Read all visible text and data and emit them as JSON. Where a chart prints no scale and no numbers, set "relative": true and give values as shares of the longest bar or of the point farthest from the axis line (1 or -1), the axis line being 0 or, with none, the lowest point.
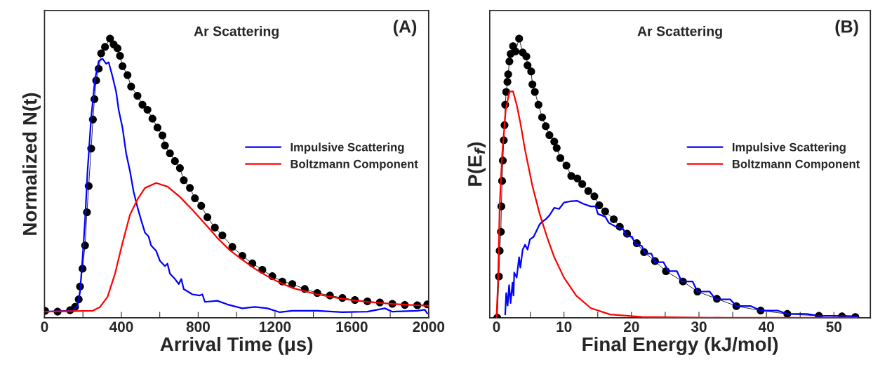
{
  "chart_data": [
    {
      "type": "line",
      "title": "Ar Scattering",
      "xlabel": "Arrival Time (μs)",
      "ylabel": "Normalized N(t)",
      "annotations": [
        "(A)"
      ],
      "relative": true,
      "xlim": [
        0,
        2000
      ],
      "xticks": [
        0,
        {
          "value": 200,
          "label": null
        },
        400,
        {
          "value": 600,
          "label": null
        },
        800,
        {
          "value": 1000,
          "label": null
        },
        1200,
        {
          "value": 1400,
          "label": null
        },
        1600,
        {
          "value": 1800,
          "label": null
        },
        2000
      ],
      "grid": false,
      "legend": "right",
      "series": [
        {
          "marker": "circle",
          "color": "#000000",
          "x": [
            3,
            68,
            133,
            159,
            178,
            185,
            198,
            211,
            221,
            230,
            243,
            252,
            260,
            269,
            282,
            295,
            315,
            341,
            360,
            380,
            393,
            406,
            432,
            451,
            484,
            510,
            536,
            562,
            588,
            614,
            627,
            653,
            679,
            705,
            725,
            757,
            783,
            816,
            848,
            887,
            926,
            978,
            1030,
            1082,
            1134,
            1186,
            1238,
            1290,
            1355,
            1420,
            1486,
            1551,
            1616,
            1681,
            1746,
            1811,
            1876,
            1941,
            1993
          ],
          "values": [
            0.025,
            0.022,
            0.027,
            0.039,
            0.066,
            0.112,
            0.176,
            0.259,
            0.378,
            0.472,
            0.606,
            0.71,
            0.783,
            0.85,
            0.892,
            0.947,
            0.97,
            1.0,
            0.979,
            0.965,
            0.938,
            0.901,
            0.869,
            0.828,
            0.795,
            0.763,
            0.745,
            0.713,
            0.681,
            0.653,
            0.617,
            0.589,
            0.561,
            0.536,
            0.493,
            0.465,
            0.428,
            0.401,
            0.36,
            0.323,
            0.295,
            0.254,
            0.222,
            0.195,
            0.172,
            0.149,
            0.13,
            0.121,
            0.103,
            0.089,
            0.08,
            0.071,
            0.064,
            0.059,
            0.055,
            0.05,
            0.046,
            0.045,
            0.048
          ]
        },
        {
          "name": "Impulsive Scattering",
          "color": "#0000ff",
          "x": [
            3,
            146,
            172,
            185,
            198,
            211,
            224,
            243,
            263,
            282,
            302,
            321,
            334,
            354,
            373,
            386,
            406,
            425,
            445,
            464,
            484,
            503,
            523,
            542,
            555,
            581,
            601,
            627,
            640,
            653,
            679,
            699,
            712,
            725,
            770,
            809,
            822,
            835,
            900,
            952,
            1030,
            1095,
            1160,
            1225,
            1290,
            1420,
            1551,
            1681,
            1772,
            1811,
            1941,
            1980,
            1993
          ],
          "values": [
            0.022,
            0.025,
            0.043,
            0.094,
            0.213,
            0.35,
            0.525,
            0.717,
            0.855,
            0.919,
            0.928,
            0.91,
            0.915,
            0.864,
            0.809,
            0.745,
            0.681,
            0.589,
            0.525,
            0.451,
            0.396,
            0.35,
            0.305,
            0.291,
            0.259,
            0.24,
            0.204,
            0.185,
            0.194,
            0.158,
            0.139,
            0.121,
            0.139,
            0.103,
            0.084,
            0.08,
            0.084,
            0.057,
            0.061,
            0.048,
            0.034,
            0.039,
            0.034,
            0.02,
            0.025,
            0.025,
            0.02,
            0.022,
            0.034,
            0.022,
            0.025,
            0.029,
            0.016
          ]
        },
        {
          "name": "Boltzmann Component",
          "color": "#ff0000",
          "x": [
            3,
            250,
            289,
            328,
            367,
            406,
            445,
            484,
            523,
            581,
            640,
            705,
            770,
            835,
            900,
            965,
            1030,
            1095,
            1160,
            1225,
            1290,
            1420,
            1551,
            1681,
            1811,
            1941,
            2000
          ],
          "values": [
            0.022,
            0.025,
            0.039,
            0.075,
            0.158,
            0.268,
            0.369,
            0.424,
            0.465,
            0.483,
            0.47,
            0.433,
            0.387,
            0.337,
            0.286,
            0.242,
            0.208,
            0.176,
            0.149,
            0.126,
            0.107,
            0.084,
            0.068,
            0.057,
            0.05,
            0.045,
            0.043
          ]
        }
      ]
    },
    {
      "type": "line",
      "title": "Ar Scattering",
      "xlabel": "Final Energy (kJ/mol)",
      "ylabel": "P(E$_{f}$)",
      "annotations": [
        "(B)"
      ],
      "relative": true,
      "xlim": [
        -1,
        55.4
      ],
      "xticks": [
        0,
        {
          "value": 5,
          "label": null
        },
        10,
        {
          "value": 15,
          "label": null
        },
        20,
        {
          "value": 25,
          "label": null
        },
        30,
        {
          "value": 35,
          "label": null
        },
        40,
        {
          "value": 45,
          "label": null
        },
        50
      ],
      "grid": false,
      "legend": "right",
      "series": [
        {
          "marker": "circle",
          "color": "#000000",
          "x": [
            0.11,
            0.36,
            0.47,
            0.65,
            0.72,
            0.83,
            0.94,
            1.08,
            1.19,
            1.29,
            1.44,
            1.62,
            1.73,
            1.91,
            2.09,
            2.45,
            2.81,
            3.35,
            3.88,
            4.42,
            4.6,
            5.14,
            5.32,
            5.68,
            6.22,
            6.76,
            7.3,
            7.84,
            8.56,
            8.92,
            9.46,
            10.36,
            11.08,
            11.98,
            12.7,
            13.6,
            14.5,
            15.22,
            16.1,
            17.37,
            18.27,
            19.35,
            20.79,
            21.87,
            23.49,
            25.11,
            27.63,
            29.78,
            32.66,
            35.54,
            39.14,
            43.09,
            47.77,
            51.19,
            53.17
          ],
          "values": [
            0,
            0.148,
            0.24,
            0.308,
            0.399,
            0.49,
            0.563,
            0.636,
            0.69,
            0.763,
            0.809,
            0.845,
            0.872,
            0.918,
            0.945,
            0.973,
            0.954,
            1.0,
            0.95,
            0.936,
            0.904,
            0.882,
            0.836,
            0.809,
            0.763,
            0.718,
            0.686,
            0.654,
            0.631,
            0.608,
            0.572,
            0.545,
            0.508,
            0.499,
            0.479,
            0.454,
            0.435,
            0.403,
            0.381,
            0.353,
            0.326,
            0.301,
            0.267,
            0.235,
            0.203,
            0.167,
            0.13,
            0.094,
            0.068,
            0.042,
            0.026,
            0.014,
            0.007,
            0.005,
            0.003
          ]
        },
        {
          "name": "Impulsive Scattering",
          "color": "#0000ff",
          "x": [
            1.29,
            1.44,
            1.65,
            1.87,
            2.09,
            2.37,
            2.52,
            2.63,
            2.99,
            3.35,
            3.53,
            3.88,
            4.24,
            4.6,
            4.96,
            5.5,
            5.86,
            6.4,
            6.76,
            7.3,
            7.84,
            8.56,
            9.28,
            10.0,
            10.9,
            11.98,
            12.88,
            13.96,
            14.68,
            15.04,
            16.12,
            16.65,
            17.73,
            18.81,
            19.17,
            20.07,
            20.61,
            21.51,
            22.05,
            22.95,
            23.49,
            24.75,
            25.47,
            26.73,
            27.45,
            29.06,
            29.78,
            31.58,
            32.48,
            34.64,
            35.54,
            37.7,
            39.14,
            41.65,
            43.09,
            45.97,
            47.77,
            51.19,
            53.53
          ],
          "values": [
            0.012,
            0.089,
            0.044,
            0.117,
            0.053,
            0.126,
            0.08,
            0.162,
            0.144,
            0.217,
            0.18,
            0.244,
            0.262,
            0.244,
            0.281,
            0.29,
            0.308,
            0.335,
            0.344,
            0.353,
            0.367,
            0.394,
            0.39,
            0.413,
            0.417,
            0.419,
            0.408,
            0.399,
            0.399,
            0.372,
            0.362,
            0.34,
            0.326,
            0.317,
            0.294,
            0.291,
            0.262,
            0.258,
            0.23,
            0.23,
            0.199,
            0.199,
            0.167,
            0.167,
            0.13,
            0.13,
            0.094,
            0.094,
            0.066,
            0.066,
            0.042,
            0.042,
            0.026,
            0.026,
            0.014,
            0.014,
            0.007,
            0.007,
            0.005
          ]
        },
        {
          "name": "Boltzmann Component",
          "color": "#ff0000",
          "x": [
            0,
            0.22,
            0.47,
            0.83,
            1.37,
            1.91,
            2.45,
            2.99,
            3.53,
            4.24,
            5.32,
            6.4,
            7.48,
            8.56,
            10.0,
            11.8,
            13.96,
            16.83,
            21.51,
            34.1,
            53.53
          ],
          "values": [
            0,
            0.126,
            0.399,
            0.581,
            0.745,
            0.809,
            0.811,
            0.763,
            0.699,
            0.6,
            0.472,
            0.372,
            0.29,
            0.217,
            0.144,
            0.08,
            0.035,
            0.012,
            0.003,
            0,
            0
          ]
        }
      ]
    }
  ]
}
